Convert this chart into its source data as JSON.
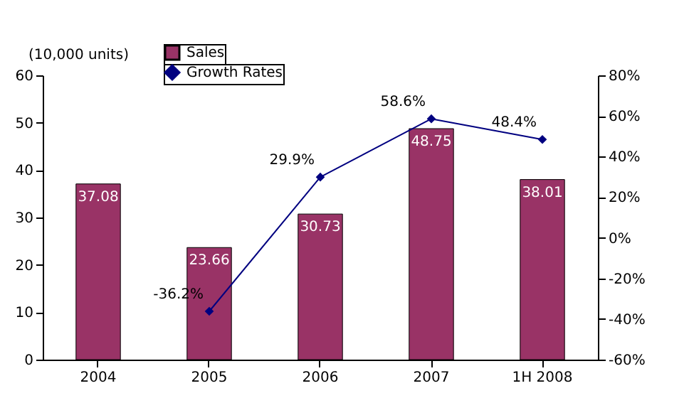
{
  "chart_data": {
    "type": "bar",
    "ylabel": "(10,000 units)",
    "categories": [
      "2004",
      "2005",
      "2006",
      "2007",
      "1H 2008"
    ],
    "series": [
      {
        "name": "Sales",
        "color": "#993366",
        "values": [
          37.08,
          23.66,
          30.73,
          48.75,
          38.01
        ]
      },
      {
        "name": "Growth Rates",
        "type": "line",
        "axis": "y2",
        "color": "#000080",
        "values": [
          null,
          -36.2,
          29.9,
          58.6,
          48.4
        ],
        "value_labels": [
          null,
          "-36.2%",
          "29.9%",
          "58.6%",
          "48.4%"
        ]
      }
    ],
    "ylim": [
      0,
      60
    ],
    "yticks": [
      0,
      10,
      20,
      30,
      40,
      50,
      60
    ],
    "y2lim": [
      -60,
      80
    ],
    "y2ticks": [
      {
        "value": -60,
        "label": "-60%"
      },
      {
        "value": -40,
        "label": "-40%"
      },
      {
        "value": -20,
        "label": "-20%"
      },
      {
        "value": 0,
        "label": "0%"
      },
      {
        "value": 20,
        "label": "20%"
      },
      {
        "value": 40,
        "label": "40%"
      },
      {
        "value": 60,
        "label": "60%"
      },
      {
        "value": 80,
        "label": "80%"
      }
    ],
    "data_labels": true,
    "grid": false,
    "legend": "top",
    "marker": "diamond",
    "line_style": "solid"
  }
}
